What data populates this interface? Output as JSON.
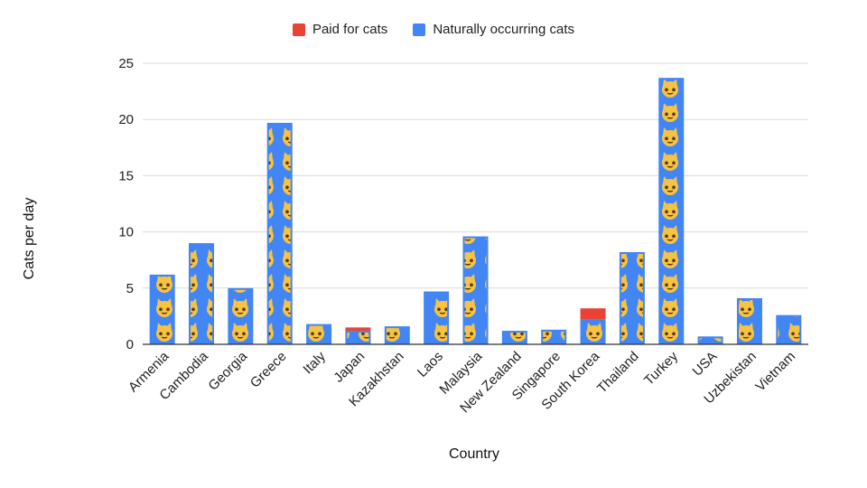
{
  "chart_data": {
    "type": "bar",
    "stacked": true,
    "xlabel": "Country",
    "ylabel": "Cats per day",
    "ylim": [
      0,
      25
    ],
    "yticks": [
      0,
      5,
      10,
      15,
      20,
      25
    ],
    "grid": true,
    "legend_position": "top",
    "marker": "cat-face emoji",
    "categories": [
      "Armenia",
      "Cambodia",
      "Georgia",
      "Greece",
      "Italy",
      "Japan",
      "Kazakhstan",
      "Laos",
      "Malaysia",
      "New Zealand",
      "Singapore",
      "South Korea",
      "Thailand",
      "Turkey",
      "USA",
      "Uzbekistan",
      "Vietnam"
    ],
    "series": [
      {
        "name": "Paid for cats",
        "color": "#ea4335",
        "values": [
          0,
          0,
          0,
          0,
          0,
          0.3,
          0,
          0,
          0,
          0,
          0,
          1.0,
          0,
          0,
          0,
          0,
          0
        ]
      },
      {
        "name": "Naturally occurring cats",
        "color": "#4285f4",
        "values": [
          6.2,
          9.0,
          5.0,
          19.7,
          1.8,
          1.2,
          1.6,
          4.7,
          9.6,
          1.2,
          1.3,
          2.2,
          8.2,
          23.7,
          0.7,
          4.1,
          2.6
        ]
      }
    ]
  }
}
